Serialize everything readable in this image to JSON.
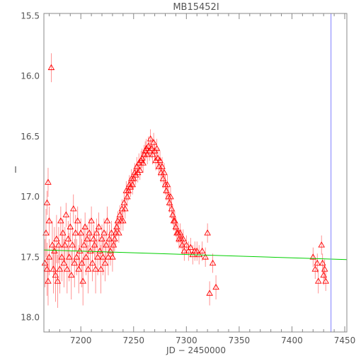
{
  "chart_data": {
    "type": "scatter",
    "title": "MB15452I",
    "xlabel": "JD − 2450000",
    "ylabel": "I",
    "xlim": [
      7165,
      7452
    ],
    "ylim": [
      18.12,
      15.48
    ],
    "y_inverted": true,
    "x_ticks": [
      7200,
      7250,
      7300,
      7350,
      7400,
      7450
    ],
    "y_ticks": [
      15.5,
      16.0,
      16.5,
      17.0,
      17.5,
      18.0
    ],
    "x_tick_labels": [
      "7200",
      "7250",
      "7300",
      "7350",
      "7400",
      "7450"
    ],
    "y_tick_labels": [
      "15.5",
      "16.0",
      "16.5",
      "17.0",
      "17.5",
      "18.0"
    ],
    "grid": false,
    "legend": "none",
    "colors": {
      "points": "#ff0000",
      "errorbars": "#ff6060",
      "baseline": "#00d000",
      "marker_line": "#8080ff",
      "axes": "#888888"
    },
    "series": [
      {
        "marker": "open-triangle",
        "with_errorbars": true,
        "points": [
          [
            7166,
            17.55,
            0.2
          ],
          [
            7167,
            17.3,
            0.2
          ],
          [
            7168,
            17.6,
            0.22
          ],
          [
            7169,
            17.7,
            0.2
          ],
          [
            7170,
            17.5,
            0.15
          ],
          [
            7168,
            17.05,
            0.1
          ],
          [
            7169,
            16.88,
            0.12
          ],
          [
            7170,
            17.2,
            0.12
          ],
          [
            7172,
            15.93,
            0.12
          ],
          [
            7173,
            17.4,
            0.2
          ],
          [
            7174,
            17.6,
            0.2
          ],
          [
            7175,
            17.45,
            0.2
          ],
          [
            7176,
            17.65,
            0.22
          ],
          [
            7177,
            17.35,
            0.2
          ],
          [
            7178,
            17.7,
            0.22
          ],
          [
            7179,
            17.4,
            0.15
          ],
          [
            7180,
            17.6,
            0.2
          ],
          [
            7181,
            17.2,
            0.12
          ],
          [
            7182,
            17.5,
            0.2
          ],
          [
            7183,
            17.3,
            0.12
          ],
          [
            7184,
            17.55,
            0.2
          ],
          [
            7185,
            17.4,
            0.15
          ],
          [
            7186,
            17.15,
            0.1
          ],
          [
            7187,
            17.6,
            0.2
          ],
          [
            7188,
            17.35,
            0.15
          ],
          [
            7189,
            17.5,
            0.2
          ],
          [
            7190,
            17.25,
            0.12
          ],
          [
            7191,
            17.65,
            0.2
          ],
          [
            7192,
            17.4,
            0.15
          ],
          [
            7193,
            17.1,
            0.12
          ],
          [
            7194,
            17.55,
            0.2
          ],
          [
            7195,
            17.3,
            0.15
          ],
          [
            7196,
            17.5,
            0.15
          ],
          [
            7197,
            17.2,
            0.12
          ],
          [
            7198,
            17.6,
            0.2
          ],
          [
            7199,
            17.45,
            0.15
          ],
          [
            7200,
            17.3,
            0.12
          ],
          [
            7201,
            17.55,
            0.2
          ],
          [
            7202,
            17.7,
            0.2
          ],
          [
            7203,
            17.4,
            0.15
          ],
          [
            7204,
            17.25,
            0.12
          ],
          [
            7205,
            17.5,
            0.15
          ],
          [
            7206,
            17.35,
            0.12
          ],
          [
            7207,
            17.6,
            0.2
          ],
          [
            7208,
            17.3,
            0.12
          ],
          [
            7209,
            17.45,
            0.15
          ],
          [
            7210,
            17.2,
            0.12
          ],
          [
            7211,
            17.55,
            0.15
          ],
          [
            7212,
            17.35,
            0.12
          ],
          [
            7213,
            17.4,
            0.12
          ],
          [
            7214,
            17.6,
            0.2
          ],
          [
            7215,
            17.3,
            0.12
          ],
          [
            7216,
            17.5,
            0.15
          ],
          [
            7217,
            17.25,
            0.12
          ],
          [
            7218,
            17.45,
            0.12
          ],
          [
            7219,
            17.6,
            0.2
          ],
          [
            7220,
            17.35,
            0.12
          ],
          [
            7221,
            17.5,
            0.15
          ],
          [
            7222,
            17.3,
            0.12
          ],
          [
            7223,
            17.55,
            0.15
          ],
          [
            7224,
            17.4,
            0.12
          ],
          [
            7225,
            17.2,
            0.12
          ],
          [
            7226,
            17.5,
            0.15
          ],
          [
            7227,
            17.35,
            0.12
          ],
          [
            7228,
            17.45,
            0.12
          ],
          [
            7229,
            17.3,
            0.1
          ],
          [
            7230,
            17.5,
            0.12
          ],
          [
            7231,
            17.4,
            0.1
          ],
          [
            7232,
            17.35,
            0.1
          ],
          [
            7233,
            17.3,
            0.1
          ],
          [
            7234,
            17.25,
            0.08
          ],
          [
            7235,
            17.2,
            0.08
          ],
          [
            7236,
            17.3,
            0.08
          ],
          [
            7237,
            17.15,
            0.08
          ],
          [
            7238,
            17.2,
            0.08
          ],
          [
            7239,
            17.1,
            0.08
          ],
          [
            7240,
            17.2,
            0.08
          ],
          [
            7241,
            17.05,
            0.08
          ],
          [
            7242,
            17.1,
            0.08
          ],
          [
            7243,
            16.95,
            0.08
          ],
          [
            7244,
            17.0,
            0.08
          ],
          [
            7245,
            16.95,
            0.08
          ],
          [
            7246,
            16.9,
            0.08
          ],
          [
            7247,
            16.92,
            0.08
          ],
          [
            7248,
            16.85,
            0.08
          ],
          [
            7249,
            16.9,
            0.08
          ],
          [
            7250,
            16.85,
            0.08
          ],
          [
            7251,
            16.8,
            0.08
          ],
          [
            7252,
            16.82,
            0.08
          ],
          [
            7253,
            16.75,
            0.08
          ],
          [
            7254,
            16.8,
            0.08
          ],
          [
            7255,
            16.72,
            0.08
          ],
          [
            7256,
            16.78,
            0.08
          ],
          [
            7257,
            16.7,
            0.08
          ],
          [
            7258,
            16.68,
            0.08
          ],
          [
            7259,
            16.72,
            0.08
          ],
          [
            7260,
            16.65,
            0.08
          ],
          [
            7261,
            16.62,
            0.08
          ],
          [
            7262,
            16.6,
            0.08
          ],
          [
            7263,
            16.65,
            0.08
          ],
          [
            7264,
            16.58,
            0.08
          ],
          [
            7265,
            16.62,
            0.08
          ],
          [
            7266,
            16.52,
            0.08
          ],
          [
            7267,
            16.6,
            0.08
          ],
          [
            7268,
            16.65,
            0.08
          ],
          [
            7269,
            16.55,
            0.08
          ],
          [
            7270,
            16.62,
            0.08
          ],
          [
            7271,
            16.7,
            0.08
          ],
          [
            7272,
            16.6,
            0.08
          ],
          [
            7273,
            16.68,
            0.08
          ],
          [
            7274,
            16.75,
            0.08
          ],
          [
            7275,
            16.7,
            0.08
          ],
          [
            7276,
            16.8,
            0.08
          ],
          [
            7277,
            16.75,
            0.08
          ],
          [
            7278,
            16.85,
            0.08
          ],
          [
            7279,
            16.8,
            0.08
          ],
          [
            7280,
            16.9,
            0.08
          ],
          [
            7281,
            16.95,
            0.08
          ],
          [
            7282,
            16.9,
            0.08
          ],
          [
            7283,
            17.0,
            0.08
          ],
          [
            7284,
            17.05,
            0.08
          ],
          [
            7285,
            17.0,
            0.08
          ],
          [
            7286,
            17.1,
            0.08
          ],
          [
            7287,
            17.15,
            0.08
          ],
          [
            7288,
            17.2,
            0.08
          ],
          [
            7289,
            17.2,
            0.08
          ],
          [
            7290,
            17.25,
            0.08
          ],
          [
            7291,
            17.3,
            0.08
          ],
          [
            7292,
            17.3,
            0.08
          ],
          [
            7293,
            17.35,
            0.08
          ],
          [
            7294,
            17.3,
            0.08
          ],
          [
            7295,
            17.35,
            0.08
          ],
          [
            7296,
            17.4,
            0.08
          ],
          [
            7297,
            17.35,
            0.08
          ],
          [
            7298,
            17.45,
            0.08
          ],
          [
            7300,
            17.4,
            0.08
          ],
          [
            7302,
            17.45,
            0.08
          ],
          [
            7304,
            17.42,
            0.08
          ],
          [
            7306,
            17.48,
            0.08
          ],
          [
            7308,
            17.45,
            0.08
          ],
          [
            7310,
            17.45,
            0.08
          ],
          [
            7312,
            17.48,
            0.08
          ],
          [
            7315,
            17.45,
            0.08
          ],
          [
            7318,
            17.5,
            0.08
          ],
          [
            7320,
            17.3,
            0.08
          ],
          [
            7322,
            17.8,
            0.1
          ],
          [
            7325,
            17.55,
            0.08
          ],
          [
            7328,
            17.75,
            0.1
          ],
          [
            7420,
            17.5,
            0.08
          ],
          [
            7422,
            17.6,
            0.08
          ],
          [
            7424,
            17.55,
            0.08
          ],
          [
            7425,
            17.7,
            0.1
          ],
          [
            7428,
            17.4,
            0.08
          ],
          [
            7429,
            17.55,
            0.08
          ],
          [
            7430,
            17.65,
            0.08
          ],
          [
            7431,
            17.6,
            0.08
          ],
          [
            7432,
            17.7,
            0.08
          ]
        ]
      }
    ],
    "lines": [
      {
        "kind": "baseline",
        "points": [
          [
            7165,
            17.44
          ],
          [
            7452,
            17.52
          ]
        ]
      },
      {
        "kind": "vertical",
        "x": 7437
      }
    ]
  }
}
